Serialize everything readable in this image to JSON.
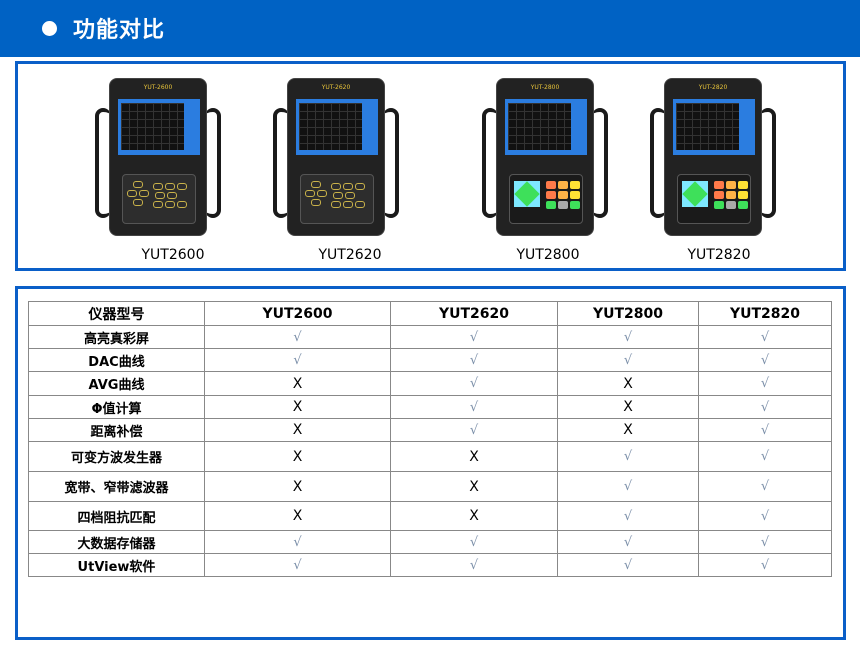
{
  "header": {
    "title": "功能对比"
  },
  "products": [
    {
      "model": "YUT2600",
      "brand": "YUT-2600",
      "keypad": "classic"
    },
    {
      "model": "YUT2620",
      "brand": "YUT-2620",
      "keypad": "classic"
    },
    {
      "model": "YUT2800",
      "brand": "YUT-2800",
      "keypad": "color"
    },
    {
      "model": "YUT2820",
      "brand": "YUT-2820",
      "keypad": "color"
    }
  ],
  "table": {
    "headers": [
      "仪器型号",
      "YUT2600",
      "YUT2620",
      "YUT2800",
      "YUT2820"
    ],
    "rows": [
      {
        "feature": "高亮真彩屏",
        "values": [
          "√",
          "√",
          "√",
          "√"
        ]
      },
      {
        "feature": "DAC曲线",
        "values": [
          "√",
          "√",
          "√",
          "√"
        ]
      },
      {
        "feature": "AVG曲线",
        "values": [
          "X",
          "√",
          "X",
          "√"
        ]
      },
      {
        "feature": "Φ值计算",
        "values": [
          "X",
          "√",
          "X",
          "√"
        ]
      },
      {
        "feature": "距离补偿",
        "values": [
          "X",
          "√",
          "X",
          "√"
        ]
      },
      {
        "feature": "可变方波发生器",
        "values": [
          "X",
          "X",
          "√",
          "√"
        ]
      },
      {
        "feature": "宽带、窄带滤波器",
        "values": [
          "X",
          "X",
          "√",
          "√"
        ]
      },
      {
        "feature": "四档阻抗匹配",
        "values": [
          "X",
          "X",
          "√",
          "√"
        ]
      },
      {
        "feature": "大数据存储器",
        "values": [
          "√",
          "√",
          "√",
          "√"
        ]
      },
      {
        "feature": "UtView软件",
        "values": [
          "√",
          "√",
          "√",
          "√"
        ]
      }
    ]
  },
  "colors": {
    "accent": "#0062c4",
    "check": "#7a8ea8"
  }
}
